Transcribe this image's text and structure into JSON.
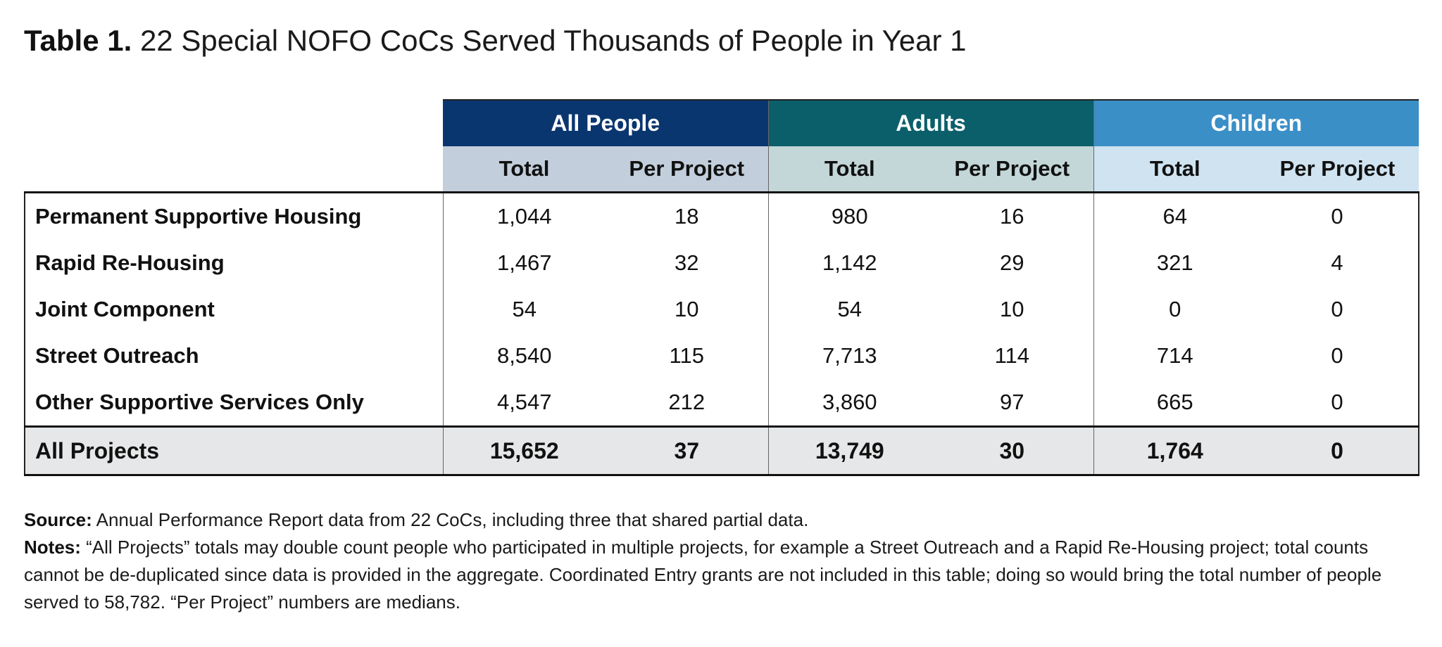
{
  "title": {
    "prefix": "Table 1.",
    "text": "22 Special NOFO CoCs Served Thousands of People in Year 1"
  },
  "groups": [
    {
      "label": "All People",
      "color": "#0a3670",
      "sub_color": "#c2cedb"
    },
    {
      "label": "Adults",
      "color": "#0b5f6a",
      "sub_color": "#c3d6d8"
    },
    {
      "label": "Children",
      "color": "#3a8fc7",
      "sub_color": "#cfe3f0"
    }
  ],
  "subheaders": {
    "total": "Total",
    "per_project": "Per Project"
  },
  "rows": [
    {
      "label": "Permanent Supportive Housing",
      "values": [
        "1,044",
        "18",
        "980",
        "16",
        "64",
        "0"
      ]
    },
    {
      "label": "Rapid Re-Housing",
      "values": [
        "1,467",
        "32",
        "1,142",
        "29",
        "321",
        "4"
      ]
    },
    {
      "label": "Joint Component",
      "values": [
        "54",
        "10",
        "54",
        "10",
        "0",
        "0"
      ]
    },
    {
      "label": "Street Outreach",
      "values": [
        "8,540",
        "115",
        "7,713",
        "114",
        "714",
        "0"
      ]
    },
    {
      "label": "Other Supportive Services Only",
      "values": [
        "4,547",
        "212",
        "3,860",
        "97",
        "665",
        "0"
      ]
    }
  ],
  "total_row": {
    "label": "All Projects",
    "values": [
      "15,652",
      "37",
      "13,749",
      "30",
      "1,764",
      "0"
    ]
  },
  "source": {
    "label": "Source:",
    "text": "Annual Performance Report data from 22 CoCs, including three that shared partial data."
  },
  "notes": {
    "label": "Notes:",
    "text": "“All Projects” totals may double count people who participated in multiple projects, for example a Street Outreach and a Rapid Re-Housing project; total counts cannot be de-duplicated since data is provided in the aggregate. Coordinated Entry grants are not included in this table; doing so would bring the total number of people served to 58,782. “Per Project” numbers are medians."
  }
}
